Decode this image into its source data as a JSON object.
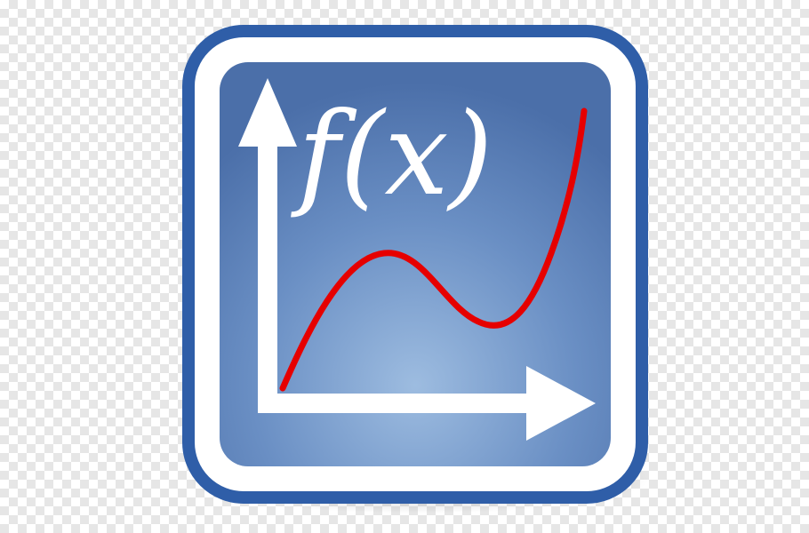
{
  "icon": {
    "semantic_name": "function-graph-icon",
    "formula_label": "f(x)",
    "colors": {
      "frame_border": "#2f5ea8",
      "frame_fill": "#ffffff",
      "panel_gradient_center": "#8fb0d8",
      "panel_gradient_edge": "#4f73ad",
      "axes": "#ffffff",
      "curve": "#e60000"
    }
  }
}
